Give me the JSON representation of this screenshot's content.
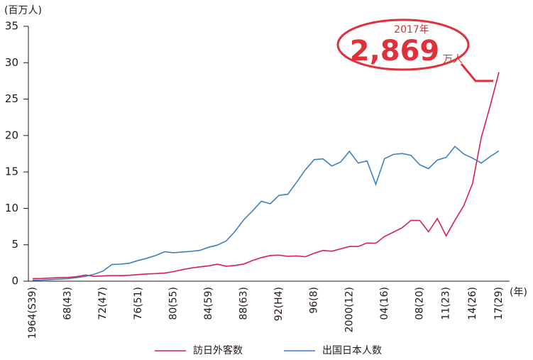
{
  "chart_data": {
    "type": "line",
    "y_unit": "(百万人)",
    "x_unit": "(年)",
    "annotation": {
      "year": "2017年",
      "value": "2,869",
      "unit": "万人"
    },
    "categories": [
      "1964(S39)",
      null,
      null,
      null,
      "68(43)",
      null,
      null,
      null,
      "72(47)",
      null,
      null,
      null,
      "76(51)",
      null,
      null,
      null,
      "80(55)",
      null,
      null,
      null,
      "84(59)",
      null,
      null,
      null,
      "88(63)",
      null,
      null,
      null,
      "92(H4)",
      null,
      null,
      null,
      "96(8)",
      null,
      null,
      null,
      "2000(12)",
      null,
      null,
      null,
      "04(16)",
      null,
      null,
      null,
      "08(20)",
      null,
      null,
      "11(23)",
      null,
      null,
      "14(26)",
      null,
      null,
      "17(29)"
    ],
    "series": [
      {
        "name": "訪日外客数",
        "color": "#d6204f",
        "values": [
          0.35,
          0.37,
          0.43,
          0.48,
          0.52,
          0.61,
          0.85,
          0.66,
          0.72,
          0.78,
          0.76,
          0.81,
          0.91,
          0.99,
          1.04,
          1.11,
          1.32,
          1.58,
          1.79,
          1.97,
          2.11,
          2.33,
          2.06,
          2.16,
          2.36,
          2.84,
          3.24,
          3.53,
          3.58,
          3.41,
          3.47,
          3.35,
          3.84,
          4.22,
          4.11,
          4.44,
          4.76,
          4.77,
          5.24,
          5.21,
          6.14,
          6.73,
          7.33,
          8.35,
          8.35,
          6.79,
          8.61,
          6.22,
          8.36,
          10.36,
          13.41,
          19.74,
          24.04,
          28.69
        ]
      },
      {
        "name": "出国日本人数",
        "color": "#3f7fc1",
        "values": [
          0.13,
          0.16,
          0.21,
          0.27,
          0.34,
          0.49,
          0.66,
          0.96,
          1.39,
          2.29,
          2.34,
          2.47,
          2.85,
          3.15,
          3.53,
          4.04,
          3.91,
          4.01,
          4.09,
          4.23,
          4.66,
          4.95,
          5.52,
          6.83,
          8.43,
          9.66,
          10.99,
          10.63,
          11.79,
          11.93,
          13.58,
          15.3,
          16.69,
          16.8,
          15.81,
          16.36,
          17.82,
          16.22,
          16.52,
          13.3,
          16.83,
          17.4,
          17.53,
          17.29,
          15.99,
          15.45,
          16.64,
          16.99,
          18.49,
          17.47,
          16.9,
          16.21,
          17.11,
          17.89
        ]
      }
    ],
    "ylim": [
      0,
      35
    ],
    "yticks": [
      0,
      5,
      10,
      15,
      20,
      25,
      30,
      35
    ]
  }
}
